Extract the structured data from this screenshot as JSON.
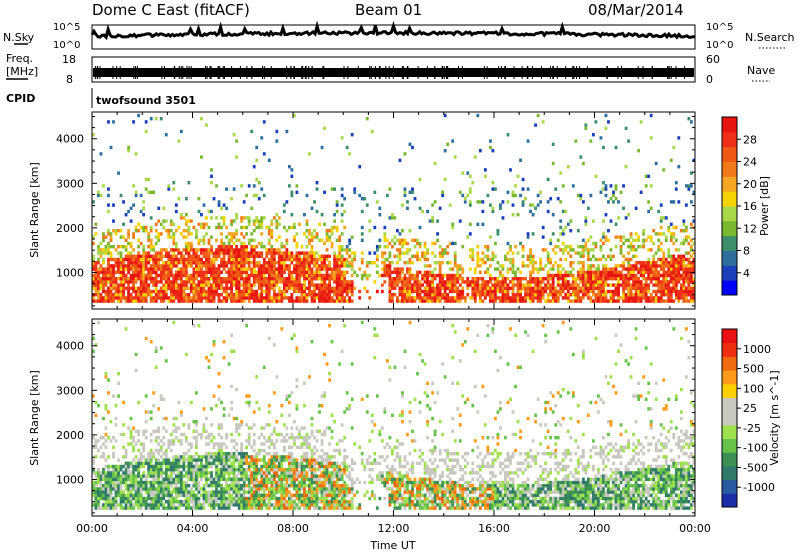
{
  "header": {
    "title": "Dome C East (fitACF)",
    "beam": "Beam 01",
    "date": "08/Mar/2014"
  },
  "noise_panel": {
    "left_label": "N.Sky",
    "right_label": "N.Search",
    "left_ticks": [
      "10^5",
      "10^0"
    ],
    "right_ticks": [
      "10^5",
      "10^0"
    ]
  },
  "freq_panel": {
    "left_label_1": "Freq.",
    "left_label_2": "[MHz]",
    "right_label": "Nave",
    "left_ticks": [
      "18",
      "8"
    ],
    "right_ticks": [
      "60",
      "0"
    ]
  },
  "cpid_panel": {
    "label": "CPID",
    "value": "twofsound 3501"
  },
  "chart_data": [
    {
      "type": "heatmap",
      "variable": "Power",
      "ylabel": "Slant Range [km]",
      "ylim": [
        180,
        4600
      ],
      "yticks": [
        "1000",
        "2000",
        "3000",
        "4000"
      ],
      "xlim": [
        0,
        24
      ],
      "colorbar_label": "Power [dB]",
      "colorbar_ticks": [
        "28",
        "24",
        "20",
        "16",
        "12",
        "8",
        "4"
      ],
      "colorbar_colors": [
        "#0000ff",
        "#1a3fb8",
        "#2e6f9e",
        "#3c8f6a",
        "#7ab832",
        "#a8d84a",
        "#f5d200",
        "#f5a623",
        "#f07a1a",
        "#f05a14",
        "#ee3018",
        "#e8140f"
      ],
      "strong_band_km": [
        350,
        1600
      ],
      "weak_band_km": [
        1600,
        2800
      ]
    },
    {
      "type": "heatmap",
      "variable": "Velocity",
      "ylabel": "Slant Range [km]",
      "ylim": [
        180,
        4600
      ],
      "yticks": [
        "1000",
        "2000",
        "3000",
        "4000"
      ],
      "xlim": [
        0,
        24
      ],
      "colorbar_label": "Velocity [m s^-1]",
      "colorbar_ticks": [
        "1000",
        "500",
        "100",
        "25",
        "-25",
        "-100",
        "-500",
        "-1000"
      ],
      "colorbar_colors": [
        "#1c2fa8",
        "#2a5aa0",
        "#2f7a6a",
        "#3c8f55",
        "#66c24a",
        "#9ee04e",
        "#c8c8c0",
        "#c8c8c0",
        "#ffd000",
        "#ff9a1a",
        "#f06a10",
        "#ee3010",
        "#e81010"
      ]
    }
  ],
  "xaxis": {
    "ticks": [
      "00:00",
      "04:00",
      "08:00",
      "12:00",
      "16:00",
      "20:00",
      "00:00"
    ],
    "label": "Time UT"
  }
}
